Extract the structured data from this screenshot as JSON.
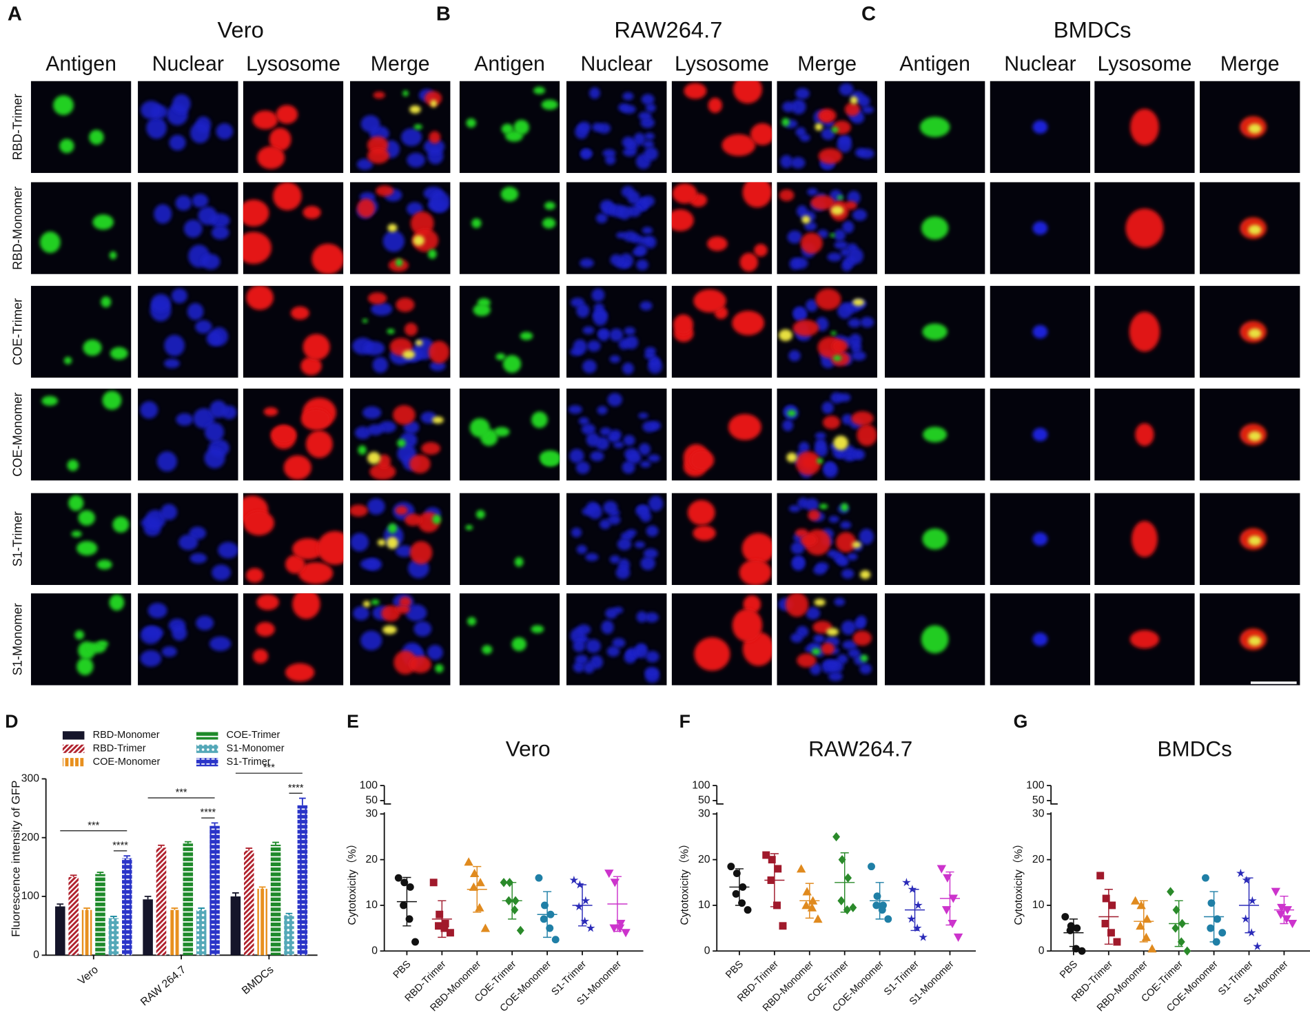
{
  "microscopy": {
    "panels": [
      {
        "letter": "A",
        "title": "Vero"
      },
      {
        "letter": "B",
        "title": "RAW264.7"
      },
      {
        "letter": "C",
        "title": "BMDCs"
      }
    ],
    "columns": [
      "Antigen",
      "Nuclear",
      "Lysosome",
      "Merge"
    ],
    "rows": [
      "RBD-Trimer",
      "RBD-Monomer",
      "COE-Trimer",
      "COE-Monomer",
      "S1-Trimer",
      "S1-Monomer"
    ]
  },
  "chart_data": [
    {
      "type": "bar",
      "panel": "D",
      "ylabel": "Fluorescence intensity of GFP",
      "categories": [
        "Vero",
        "RAW 264.7",
        "BMDCs"
      ],
      "series": [
        {
          "name": "RBD-Monomer",
          "color": "#15152a",
          "pattern": "solid",
          "values": [
            83,
            95,
            100
          ],
          "errors": [
            4,
            5,
            6
          ]
        },
        {
          "name": "RBD-Trimer",
          "color": "#b0202c",
          "pattern": "diagonal",
          "values": [
            133,
            183,
            178
          ],
          "errors": [
            3,
            4,
            4
          ]
        },
        {
          "name": "COE-Monomer",
          "color": "#e8901e",
          "pattern": "vertical",
          "values": [
            77,
            77,
            113
          ],
          "errors": [
            3,
            3,
            3
          ]
        },
        {
          "name": "COE-Trimer",
          "color": "#1e8a2a",
          "pattern": "horizontal",
          "values": [
            138,
            190,
            188
          ],
          "errors": [
            3,
            3,
            4
          ]
        },
        {
          "name": "S1-Monomer",
          "color": "#1a8aa0",
          "pattern": "dots",
          "values": [
            63,
            77,
            68
          ],
          "errors": [
            3,
            3,
            3
          ]
        },
        {
          "name": "S1-Trimer",
          "color": "#2a34c8",
          "pattern": "brick",
          "values": [
            165,
            220,
            255
          ],
          "errors": [
            4,
            5,
            12
          ]
        }
      ],
      "ylim": [
        0,
        300
      ],
      "yticks": [
        0,
        100,
        200,
        300
      ],
      "legend": "top",
      "annotations": [
        {
          "text": "***",
          "category": "Vero",
          "from": "RBD-Monomer",
          "to": "S1-Trimer"
        },
        {
          "text": "****",
          "category": "Vero",
          "from": "S1-Monomer",
          "to": "S1-Trimer"
        },
        {
          "text": "***",
          "category": "RAW 264.7",
          "from": "RBD-Monomer",
          "to": "S1-Trimer"
        },
        {
          "text": "****",
          "category": "RAW 264.7",
          "from": "S1-Monomer",
          "to": "S1-Trimer"
        },
        {
          "text": "***",
          "category": "BMDCs",
          "from": "RBD-Monomer",
          "to": "S1-Trimer"
        },
        {
          "text": "****",
          "category": "BMDCs",
          "from": "S1-Monomer",
          "to": "S1-Trimer"
        }
      ]
    },
    {
      "type": "dotplot",
      "panel": "E",
      "title": "Vero",
      "ylabel": "Cytotoxicity（%）",
      "categories": [
        "PBS",
        "RBD-Trimer",
        "RBD-Monomer",
        "COE-Trimer",
        "COE-Monomer",
        "S1-Trimer",
        "S1-Monomer"
      ],
      "colors": [
        "#111111",
        "#a0192b",
        "#e08a1e",
        "#2a8a2a",
        "#1f7fa6",
        "#2a2ab8",
        "#cc33cc"
      ],
      "markers": [
        "circle",
        "square",
        "triangle",
        "diamond",
        "circle",
        "star",
        "triangle-down"
      ],
      "values": [
        [
          16,
          15,
          14,
          10,
          7,
          2
        ],
        [
          15,
          8,
          6,
          5.5,
          5,
          4
        ],
        [
          19.5,
          17,
          15,
          14,
          9.5,
          5
        ],
        [
          15,
          15,
          11,
          11,
          9,
          4.5
        ],
        [
          16,
          10,
          8,
          7,
          5,
          2.5
        ],
        [
          15.5,
          14.5,
          11,
          9.7,
          6.5,
          5
        ],
        [
          17,
          15,
          6,
          5,
          5,
          4
        ]
      ],
      "mean": [
        10.8,
        7,
        13.5,
        11,
        8,
        10,
        10.3
      ],
      "sd": [
        5.3,
        4,
        5,
        4,
        5,
        4.5,
        6
      ],
      "ylim": [
        0,
        100
      ],
      "y_break": [
        30,
        50
      ],
      "yticks": [
        0,
        10,
        20,
        30,
        50,
        100
      ]
    },
    {
      "type": "dotplot",
      "panel": "F",
      "title": "RAW264.7",
      "ylabel": "Cytotoxicity（%）",
      "categories": [
        "PBS",
        "RBD-Trimer",
        "RBD-Monomer",
        "COE-Trimer",
        "COE-Monomer",
        "S1-Trimer",
        "S1-Monomer"
      ],
      "colors": [
        "#111111",
        "#a0192b",
        "#e08a1e",
        "#2a8a2a",
        "#1f7fa6",
        "#2a2ab8",
        "#cc33cc"
      ],
      "markers": [
        "circle",
        "square",
        "triangle",
        "diamond",
        "circle",
        "star",
        "triangle-down"
      ],
      "values": [
        [
          18.5,
          17,
          14,
          12.5,
          10.5,
          9
        ],
        [
          21,
          20,
          18,
          15.5,
          10,
          5.5
        ],
        [
          18,
          13,
          11,
          10,
          9.5,
          7
        ],
        [
          25,
          20,
          16,
          11,
          9,
          9.5
        ],
        [
          18.5,
          12,
          10,
          10,
          9,
          7
        ],
        [
          15,
          13.5,
          10,
          7,
          5,
          3
        ],
        [
          18,
          16,
          11.5,
          9,
          6,
          3
        ]
      ],
      "mean": [
        14,
        15.5,
        11,
        15,
        11,
        9,
        11.5
      ],
      "sd": [
        4,
        5.8,
        3.8,
        6.5,
        4,
        4.5,
        5.8
      ],
      "ylim": [
        0,
        100
      ],
      "y_break": [
        30,
        50
      ],
      "yticks": [
        0,
        10,
        20,
        30,
        50,
        100
      ]
    },
    {
      "type": "dotplot",
      "panel": "G",
      "title": "BMDCs",
      "ylabel": "Cytotoxicity（%）",
      "categories": [
        "PBS",
        "RBD-Trimer",
        "RBD-Monomer",
        "COE-Trimer",
        "COE-Monomer",
        "S1-Trimer",
        "S1-Monomer"
      ],
      "colors": [
        "#111111",
        "#a0192b",
        "#e08a1e",
        "#2a8a2a",
        "#1f7fa6",
        "#2a2ab8",
        "#cc33cc"
      ],
      "markers": [
        "circle",
        "square",
        "triangle",
        "diamond",
        "circle",
        "star",
        "triangle-down"
      ],
      "values": [
        [
          7.5,
          5.5,
          5,
          4.5,
          0.5,
          0
        ],
        [
          16.5,
          11.5,
          10,
          6,
          4,
          2
        ],
        [
          11,
          10,
          7,
          5.5,
          3,
          0.5
        ],
        [
          13,
          9,
          6,
          5,
          2,
          0
        ],
        [
          16,
          10.5,
          7,
          5,
          2,
          4
        ],
        [
          17,
          15.5,
          11,
          7,
          4,
          1
        ],
        [
          13,
          9.5,
          9,
          8,
          7,
          6
        ]
      ],
      "mean": [
        4,
        7.5,
        6.5,
        6,
        7.5,
        10,
        9
      ],
      "sd": [
        3,
        6,
        4.5,
        5,
        5.5,
        6,
        3
      ],
      "ylim": [
        0,
        100
      ],
      "y_break": [
        30,
        50
      ],
      "yticks": [
        0,
        10,
        20,
        30,
        50,
        100
      ]
    }
  ]
}
